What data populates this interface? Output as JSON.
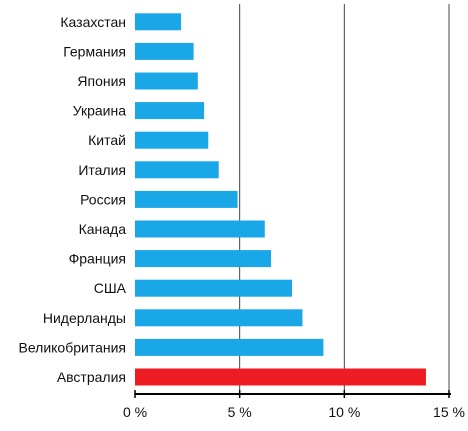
{
  "chart_data": {
    "type": "bar",
    "orientation": "horizontal",
    "categories": [
      "Казахстан",
      "Германия",
      "Япония",
      "Украина",
      "Китай",
      "Италия",
      "Россия",
      "Канада",
      "Франция",
      "США",
      "Нидерланды",
      "Великобритания",
      "Австралия"
    ],
    "values": [
      2.2,
      2.8,
      3.0,
      3.3,
      3.5,
      4.0,
      4.9,
      6.2,
      6.5,
      7.5,
      8.0,
      9.0,
      13.9
    ],
    "xlim": [
      0,
      15
    ],
    "xticks": [
      "0 %",
      "5 %",
      "10 %",
      "15 %"
    ],
    "xtick_values": [
      0,
      5,
      10,
      15
    ],
    "grid": "vertical",
    "colors": {
      "bar": "#1aa7e8",
      "highlight": "#ee1d23",
      "grid": "#444444",
      "axis": "#000000"
    },
    "highlight_category": "Австралия"
  }
}
